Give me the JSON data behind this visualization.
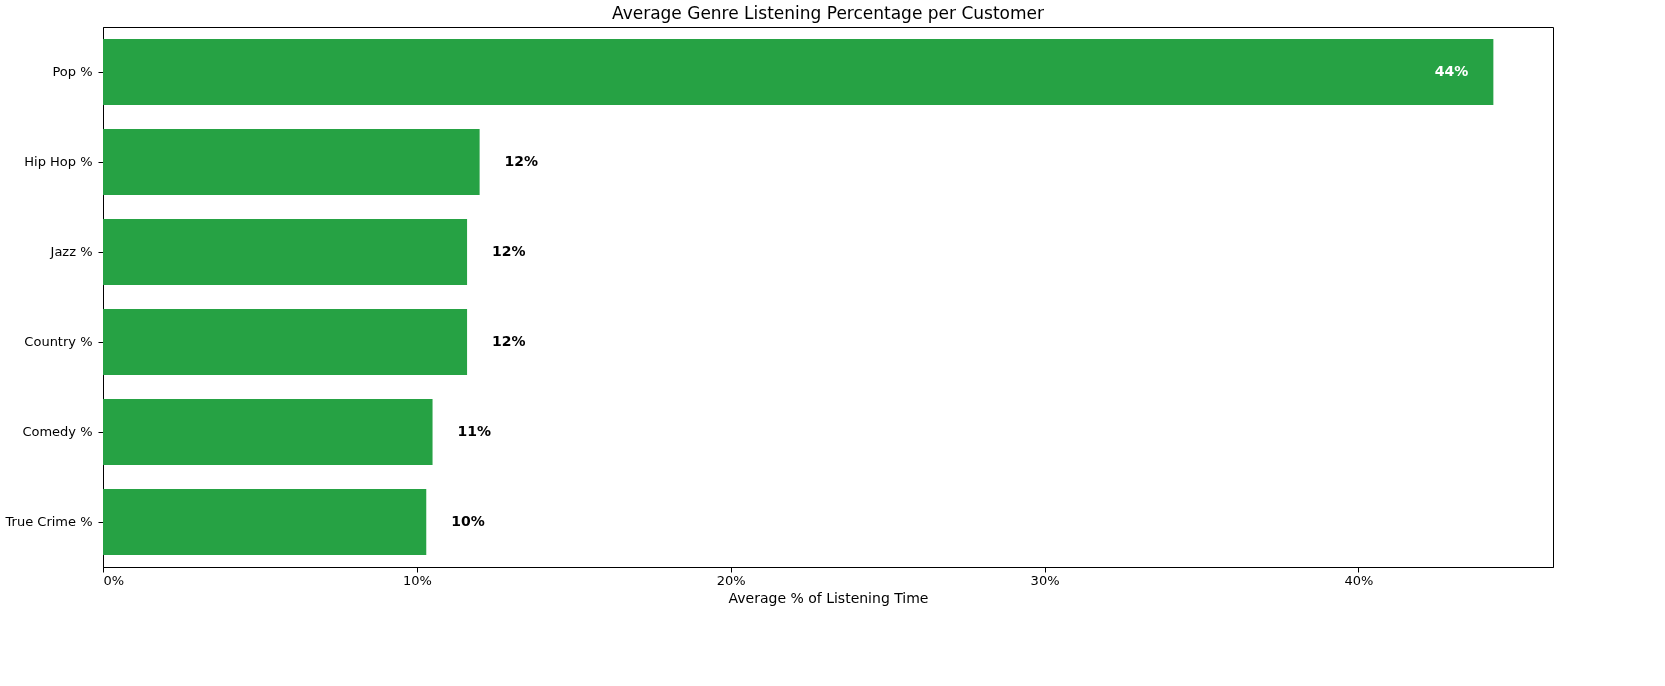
{
  "chart_data": {
    "type": "bar",
    "orientation": "horizontal",
    "title": "Average Genre Listening Percentage per Customer",
    "xlabel": "Average % of Listening Time",
    "categories": [
      "Pop %",
      "Hip Hop %",
      "Jazz %",
      "Country %",
      "Comedy %",
      "True Crime %"
    ],
    "values": [
      44.3,
      12.0,
      11.6,
      11.6,
      10.5,
      10.3
    ],
    "value_labels": [
      "44%",
      "12%",
      "12%",
      "12%",
      "11%",
      "10%"
    ],
    "color": "#26a244",
    "xlim": [
      0,
      46.2
    ],
    "xticks": [
      {
        "value": 0,
        "label": "0%"
      },
      {
        "value": 10,
        "label": "10%"
      },
      {
        "value": 20,
        "label": "20%"
      },
      {
        "value": 30,
        "label": "30%"
      },
      {
        "value": 40,
        "label": "40%"
      }
    ],
    "grid": false
  }
}
